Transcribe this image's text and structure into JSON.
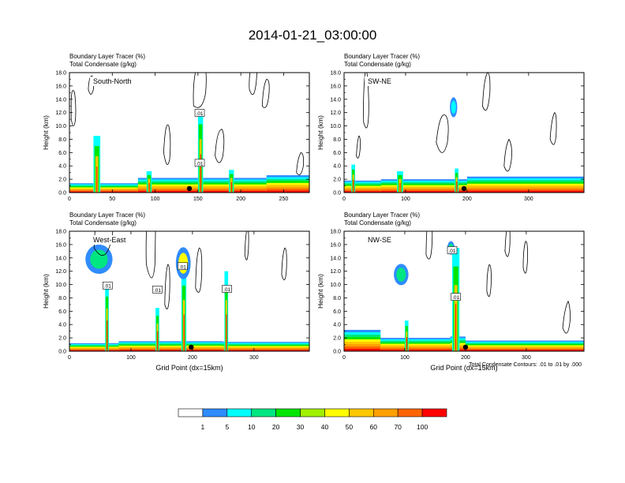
{
  "figure": {
    "title": "2014-01-21_03:00:00",
    "contour_note": "Total Condensate Contours: .01 to .01 by .000",
    "colorbar": {
      "colors": [
        "#ffffff",
        "#2f8cff",
        "#00ffff",
        "#00e680",
        "#00e600",
        "#a0f000",
        "#ffff00",
        "#ffc800",
        "#ffa000",
        "#ff6400",
        "#ff0000"
      ],
      "labels": [
        "1",
        "5",
        "10",
        "20",
        "30",
        "40",
        "50",
        "60",
        "70",
        "100"
      ]
    }
  },
  "chart_data": [
    {
      "type": "heatmap",
      "label": "South-North",
      "header_lines": [
        "Boundary Layer Tracer   (%)",
        "Total Condensate   (g/kg)"
      ],
      "ylabel": "Height (km)",
      "xlabel": "",
      "xlim": [
        0,
        280
      ],
      "ylim": [
        0,
        18
      ],
      "xticks": [
        "0",
        "50",
        "100",
        "150",
        "200",
        "250"
      ],
      "yticks": [
        "0.0",
        "2.0",
        "4.0",
        "6.0",
        "8.0",
        "10.0",
        "12.0",
        "14.0",
        "16.0",
        "18.0"
      ],
      "contour_labels": [
        ".01",
        ".01"
      ],
      "marker_x": 140
    },
    {
      "type": "heatmap",
      "label": "SW-NE",
      "header_lines": [
        "Boundary Layer Tracer   (%)",
        "Total Condensate   (g/kg)"
      ],
      "ylabel": "Height (km)",
      "xlabel": "",
      "xlim": [
        0,
        390
      ],
      "ylim": [
        0,
        18
      ],
      "xticks": [
        "0",
        "100",
        "200",
        "300"
      ],
      "yticks": [
        "0.0",
        "2.0",
        "4.0",
        "6.0",
        "8.0",
        "10.0",
        "12.0",
        "14.0",
        "16.0",
        "18.0"
      ],
      "contour_labels": [],
      "marker_x": 195
    },
    {
      "type": "heatmap",
      "label": "West-East",
      "header_lines": [
        "Boundary Layer Tracer   (%)",
        "Total Condensate   (g/kg)"
      ],
      "ylabel": "Height (km)",
      "xlabel": "Grid Point (dx=15km)",
      "xlim": [
        0,
        390
      ],
      "ylim": [
        0,
        18
      ],
      "xticks": [
        "0",
        "100",
        "200",
        "300"
      ],
      "yticks": [
        "0.0",
        "2.0",
        "4.0",
        "6.0",
        "8.0",
        "10.0",
        "12.0",
        "14.0",
        "16.0",
        "18.0"
      ],
      "contour_labels": [
        ".01",
        ".01",
        ".01",
        ".01"
      ],
      "marker_x": 198
    },
    {
      "type": "heatmap",
      "label": "NW-SE",
      "header_lines": [
        "Boundary Layer Tracer   (%)",
        "Total Condensate   (g/kg)"
      ],
      "ylabel": "Height (km)",
      "xlabel": "Grid Point (dx=15km)",
      "xlim": [
        0,
        395
      ],
      "ylim": [
        0,
        18
      ],
      "xticks": [
        "0",
        "100",
        "200",
        "300"
      ],
      "yticks": [
        "0.0",
        "2.0",
        "4.0",
        "6.0",
        "8.0",
        "10.0",
        "12.0",
        "14.0",
        "16.0",
        "18.0"
      ],
      "contour_labels": [
        ".01",
        ".01"
      ],
      "marker_x": 200
    }
  ]
}
